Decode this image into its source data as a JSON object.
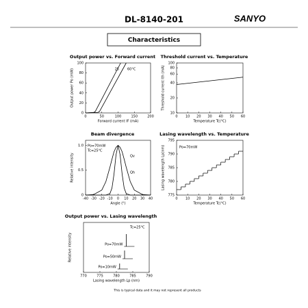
{
  "header": {
    "model": "DL-8140-201",
    "brand": "SANYO",
    "section": "Characteristics"
  },
  "chart_data": [
    {
      "type": "line",
      "title": "Output power vs. Forward current",
      "xlabel": "Forward current  IF (mA)",
      "ylabel": "Output power  Po (mW)",
      "xlim": [
        0,
        200
      ],
      "xticks": [
        0,
        50,
        100,
        150,
        200
      ],
      "ylim": [
        0,
        100
      ],
      "yticks": [
        0,
        20,
        40,
        60,
        80,
        100
      ],
      "series": [
        {
          "name": "25",
          "color": "#000000",
          "x": [
            0,
            25,
            30,
            108
          ],
          "values": [
            0,
            1,
            3,
            100
          ]
        },
        {
          "name": "60°C",
          "color": "#000000",
          "x": [
            0,
            38,
            43,
            125
          ],
          "values": [
            0,
            1,
            3,
            100
          ]
        }
      ]
    },
    {
      "type": "line",
      "title": "Threshold current vs. Temperature",
      "xlabel": "Temperature  Tc(°C)",
      "ylabel": "Threshold current  Ith (mA)",
      "log_y": true,
      "xlim": [
        0,
        60
      ],
      "xticks": [
        0,
        10,
        20,
        30,
        40,
        50,
        60
      ],
      "ylim": [
        10,
        100
      ],
      "yticks": [
        10,
        20,
        40,
        60,
        80,
        100
      ],
      "series": [
        {
          "color": "#000000",
          "x": [
            0,
            60
          ],
          "values": [
            37,
            52
          ]
        }
      ]
    },
    {
      "type": "line",
      "title": "Beam divergence",
      "xlabel": "Angle (°)",
      "ylabel": "Relative intensity",
      "xlim": [
        -40,
        40
      ],
      "xticks": [
        -40,
        -30,
        -20,
        -10,
        0,
        10,
        20,
        30,
        40
      ],
      "ylim": [
        0,
        1.1
      ],
      "yticks": [
        0,
        0.5,
        {
          "value": 1,
          "label": "1.0"
        }
      ],
      "annotations": [
        "Po=70mW",
        "Tc=25°C"
      ],
      "series": [
        {
          "name": "Qv",
          "color": "#000000",
          "x": [
            -40,
            -30,
            -20,
            -15,
            -10,
            -7.5,
            -5,
            -2.5,
            0,
            2.5,
            5,
            7.5,
            10,
            15,
            20,
            30,
            40
          ],
          "values": [
            0,
            0.01,
            0.1,
            0.27,
            0.56,
            0.72,
            0.87,
            0.96,
            1,
            0.96,
            0.87,
            0.72,
            0.56,
            0.27,
            0.1,
            0.01,
            0
          ]
        },
        {
          "name": "Qh",
          "color": "#000000",
          "x": [
            -40,
            -30,
            -20,
            -15,
            -10,
            -7.5,
            -5,
            -2.5,
            0,
            2.5,
            5,
            7.5,
            10,
            15,
            20,
            30,
            40
          ],
          "values": [
            0,
            0,
            0,
            0,
            0.03,
            0.14,
            0.42,
            0.81,
            1,
            0.81,
            0.42,
            0.14,
            0.03,
            0,
            0,
            0,
            0
          ]
        }
      ]
    },
    {
      "type": "line",
      "step": true,
      "title": "Lasing wavelength vs. Temperature",
      "xlabel": "Temperature  Tc(°C)",
      "ylabel": "Lasing wavelength  Lp(nm)",
      "xlim": [
        0,
        60
      ],
      "xticks": [
        0,
        10,
        20,
        30,
        40,
        50,
        60
      ],
      "ylim": [
        775,
        795
      ],
      "yticks": [
        775,
        780,
        785,
        790,
        795
      ],
      "annotations": [
        "Po=70mW"
      ],
      "series": [
        {
          "color": "#000000",
          "x": [
            0,
            4,
            8,
            12,
            16,
            20,
            24,
            28,
            32,
            36,
            40,
            44,
            48,
            52,
            56
          ],
          "values": [
            777,
            778,
            779,
            780,
            781,
            782,
            783,
            784,
            785,
            786,
            787,
            788,
            789,
            790,
            791
          ]
        }
      ]
    },
    {
      "type": "spectrum",
      "title": "Output power vs. Lasing wavelength",
      "xlabel": "Lasing wavelength  Lp (nm)",
      "ylabel": "Relative intensity",
      "xlim": [
        770,
        790
      ],
      "xticks": [
        770,
        775,
        780,
        785,
        790
      ],
      "annotations": [
        "Tc=25°C"
      ],
      "series": [
        {
          "name": "Po=70mW",
          "color": "#000000",
          "peak": 783
        },
        {
          "name": "Po=50mW",
          "color": "#000000",
          "peak": 782.5
        },
        {
          "name": "Po=10mW",
          "color": "#000000",
          "peak": 781
        }
      ]
    }
  ],
  "footer": "This is typical data and it may not represent all products"
}
